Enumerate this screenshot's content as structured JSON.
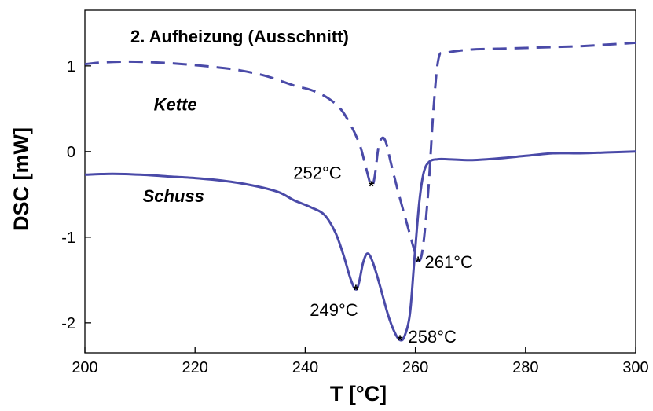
{
  "chart_data": {
    "type": "line",
    "title": "2. Aufheizung (Ausschnitt)",
    "xlabel": "T [°C]",
    "ylabel": "DSC [mW]",
    "xlim": [
      200,
      300
    ],
    "ylim": [
      -2.35,
      1.65
    ],
    "x_ticks": [
      200,
      220,
      240,
      260,
      280,
      300
    ],
    "y_ticks": [
      1,
      0,
      -1,
      -2
    ],
    "x_tick_labels": [
      "200",
      "220",
      "240",
      "260",
      "280",
      "300"
    ],
    "y_tick_labels": [
      "1",
      "0",
      "-1",
      "-2"
    ],
    "grid": false,
    "line_color": "#4a4aa8",
    "series": [
      {
        "name": "Kette",
        "style": "dashed",
        "points": [
          [
            200,
            1.02
          ],
          [
            203,
            1.04
          ],
          [
            208,
            1.05
          ],
          [
            213,
            1.04
          ],
          [
            218,
            1.02
          ],
          [
            223,
            0.99
          ],
          [
            228,
            0.95
          ],
          [
            233,
            0.88
          ],
          [
            238,
            0.77
          ],
          [
            241,
            0.72
          ],
          [
            244,
            0.63
          ],
          [
            246.5,
            0.49
          ],
          [
            248.5,
            0.28
          ],
          [
            250,
            0.06
          ],
          [
            251,
            -0.18
          ],
          [
            252,
            -0.4
          ],
          [
            252.6,
            -0.3
          ],
          [
            253.3,
            0.05
          ],
          [
            254,
            0.16
          ],
          [
            254.7,
            0.1
          ],
          [
            255.5,
            -0.12
          ],
          [
            257,
            -0.5
          ],
          [
            258.5,
            -0.85
          ],
          [
            259.8,
            -1.15
          ],
          [
            260.5,
            -1.28
          ],
          [
            261.3,
            -1.15
          ],
          [
            262.3,
            -0.5
          ],
          [
            263.3,
            0.5
          ],
          [
            264.2,
            1.08
          ],
          [
            265.5,
            1.15
          ],
          [
            270,
            1.19
          ],
          [
            275,
            1.2
          ],
          [
            280,
            1.21
          ],
          [
            285,
            1.22
          ],
          [
            290,
            1.23
          ],
          [
            295,
            1.25
          ],
          [
            300,
            1.27
          ]
        ]
      },
      {
        "name": "Schuss",
        "style": "solid",
        "points": [
          [
            200,
            -0.27
          ],
          [
            205,
            -0.26
          ],
          [
            210,
            -0.27
          ],
          [
            215,
            -0.29
          ],
          [
            220,
            -0.31
          ],
          [
            225,
            -0.34
          ],
          [
            230,
            -0.39
          ],
          [
            235,
            -0.47
          ],
          [
            238,
            -0.57
          ],
          [
            241,
            -0.65
          ],
          [
            243.5,
            -0.74
          ],
          [
            245.5,
            -0.95
          ],
          [
            247,
            -1.22
          ],
          [
            248.3,
            -1.5
          ],
          [
            249.2,
            -1.61
          ],
          [
            249.8,
            -1.52
          ],
          [
            250.5,
            -1.3
          ],
          [
            251.3,
            -1.19
          ],
          [
            252.2,
            -1.28
          ],
          [
            253.5,
            -1.55
          ],
          [
            255,
            -1.9
          ],
          [
            256.3,
            -2.12
          ],
          [
            257.2,
            -2.2
          ],
          [
            258,
            -2.16
          ],
          [
            259,
            -1.9
          ],
          [
            259.8,
            -1.28
          ],
          [
            260.7,
            -0.6
          ],
          [
            261.5,
            -0.25
          ],
          [
            262.5,
            -0.12
          ],
          [
            264,
            -0.09
          ],
          [
            266,
            -0.09
          ],
          [
            270,
            -0.1
          ],
          [
            275,
            -0.08
          ],
          [
            280,
            -0.05
          ],
          [
            285,
            -0.02
          ],
          [
            290,
            -0.02
          ],
          [
            295,
            -0.01
          ],
          [
            300,
            0.0
          ]
        ]
      }
    ],
    "series_labels": [
      {
        "series": "Kette",
        "text": "Kette",
        "x": 212.5,
        "y": 0.48
      },
      {
        "series": "Schuss",
        "text": "Schuss",
        "x": 210.5,
        "y": -0.59
      }
    ],
    "annotations": [
      {
        "label": "252°C",
        "x": 252,
        "y": -0.4,
        "text_x": 246.6,
        "text_y": -0.32,
        "anchor": "end"
      },
      {
        "label": "249°C",
        "x": 249.2,
        "y": -1.61,
        "text_x": 249.6,
        "text_y": -1.92,
        "anchor": "end"
      },
      {
        "label": "258°C",
        "x": 257.2,
        "y": -2.2,
        "text_x": 258.7,
        "text_y": -2.23,
        "anchor": "start"
      },
      {
        "label": "261°C",
        "x": 260.5,
        "y": -1.28,
        "text_x": 261.7,
        "text_y": -1.36,
        "anchor": "start"
      }
    ]
  }
}
